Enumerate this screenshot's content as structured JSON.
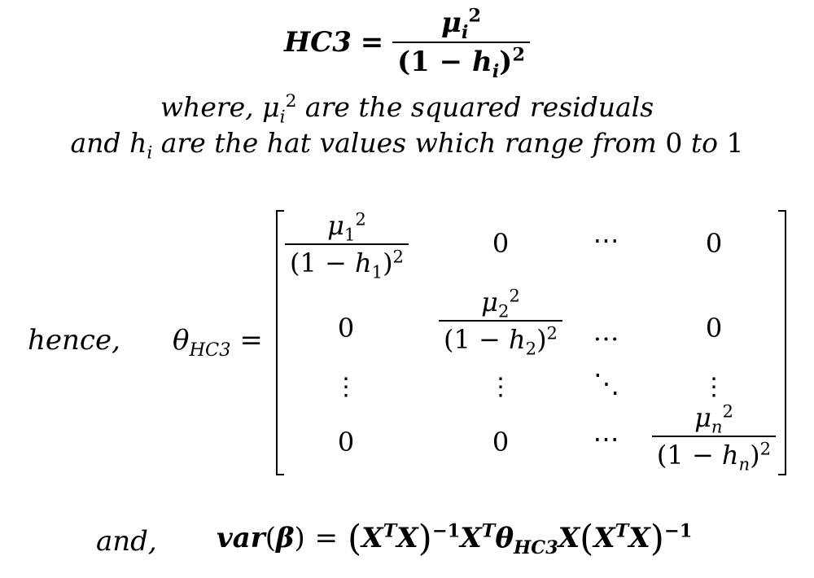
{
  "formula1": {
    "lhs": "HC3",
    "equals": "=",
    "num_symbol": "μ",
    "num_sub": "i",
    "num_sup": "2",
    "den_open": "(",
    "den_one": "1",
    "den_minus": "−",
    "den_h": "h",
    "den_sub": "i",
    "den_close": ")",
    "den_sup": "2"
  },
  "where_line": {
    "prefix": "where,",
    "symbol": "μ",
    "sub": "i",
    "sup": "2",
    "text": "are the squared residuals"
  },
  "and_line": {
    "prefix": "and",
    "symbol": "h",
    "sub": "i",
    "text1": "are the hat values which range from",
    "zero": "0",
    "to": "to",
    "one": "1"
  },
  "hence_label": "hence,",
  "theta": {
    "symbol": "θ",
    "sub": "HC3",
    "equals": "="
  },
  "matrix": {
    "zero": "0",
    "hdots": "⋯",
    "hdots_alt": "…",
    "vdots": "⋮",
    "ddots": "⋱",
    "entries": [
      {
        "mu": "μ",
        "h": "h",
        "idx": "1",
        "sup": "2",
        "one": "1",
        "minus": "−",
        "lp": "(",
        "rp": ")"
      },
      {
        "mu": "μ",
        "h": "h",
        "idx": "2",
        "sup": "2",
        "one": "1",
        "minus": "−",
        "lp": "(",
        "rp": ")"
      },
      {
        "mu": "μ",
        "h": "h",
        "idx": "n",
        "sup": "2",
        "one": "1",
        "minus": "−",
        "lp": "(",
        "rp": ")"
      }
    ]
  },
  "and_label": "and,",
  "var_line": {
    "var": "var",
    "lp": "(",
    "beta": "β",
    "rp": ")",
    "equals": "=",
    "X": "X",
    "T": "T",
    "inv": "−1",
    "theta": "θ",
    "theta_sub": "HC3"
  }
}
